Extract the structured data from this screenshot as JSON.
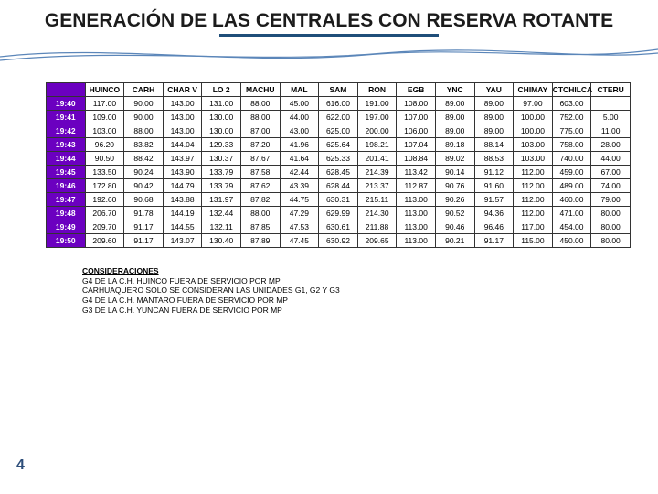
{
  "title_text": "GENERACIÓN DE LAS CENTRALES CON RESERVA ROTANTE",
  "title_fontsize": "21px",
  "title_color": "#1b1b1b",
  "underline_color": "#1f4e79",
  "wave_stroke": "#5b86b9",
  "page_number": "4",
  "pagenum_fontsize": "16px",
  "pagenum_color": "#2d4e7a",
  "table": {
    "header_bg": "#ffffff",
    "time_col_bg": "#6b00c0",
    "time_col_color": "#ffffff",
    "columns": [
      "",
      "HUINCO",
      "CARH",
      "CHAR V",
      "LO 2",
      "MACHU",
      "MAL",
      "SAM",
      "RON",
      "EGB",
      "YNC",
      "YAU",
      "CHIMAY",
      "CTCHILCA",
      "CTERU"
    ],
    "rows": [
      [
        "19:40",
        "117.00",
        "90.00",
        "143.00",
        "131.00",
        "88.00",
        "45.00",
        "616.00",
        "191.00",
        "108.00",
        "89.00",
        "89.00",
        "97.00",
        "603.00",
        ""
      ],
      [
        "19:41",
        "109.00",
        "90.00",
        "143.00",
        "130.00",
        "88.00",
        "44.00",
        "622.00",
        "197.00",
        "107.00",
        "89.00",
        "89.00",
        "100.00",
        "752.00",
        "5.00"
      ],
      [
        "19:42",
        "103.00",
        "88.00",
        "143.00",
        "130.00",
        "87.00",
        "43.00",
        "625.00",
        "200.00",
        "106.00",
        "89.00",
        "89.00",
        "100.00",
        "775.00",
        "11.00"
      ],
      [
        "19:43",
        "96.20",
        "83.82",
        "144.04",
        "129.33",
        "87.20",
        "41.96",
        "625.64",
        "198.21",
        "107.04",
        "89.18",
        "88.14",
        "103.00",
        "758.00",
        "28.00"
      ],
      [
        "19:44",
        "90.50",
        "88.42",
        "143.97",
        "130.37",
        "87.67",
        "41.64",
        "625.33",
        "201.41",
        "108.84",
        "89.02",
        "88.53",
        "103.00",
        "740.00",
        "44.00"
      ],
      [
        "19:45",
        "133.50",
        "90.24",
        "143.90",
        "133.79",
        "87.58",
        "42.44",
        "628.45",
        "214.39",
        "113.42",
        "90.14",
        "91.12",
        "112.00",
        "459.00",
        "67.00"
      ],
      [
        "19:46",
        "172.80",
        "90.42",
        "144.79",
        "133.79",
        "87.62",
        "43.39",
        "628.44",
        "213.37",
        "112.87",
        "90.76",
        "91.60",
        "112.00",
        "489.00",
        "74.00"
      ],
      [
        "19:47",
        "192.60",
        "90.68",
        "143.88",
        "131.97",
        "87.82",
        "44.75",
        "630.31",
        "215.11",
        "113.00",
        "90.26",
        "91.57",
        "112.00",
        "460.00",
        "79.00"
      ],
      [
        "19:48",
        "206.70",
        "91.78",
        "144.19",
        "132.44",
        "88.00",
        "47.29",
        "629.99",
        "214.30",
        "113.00",
        "90.52",
        "94.36",
        "112.00",
        "471.00",
        "80.00"
      ],
      [
        "19:49",
        "209.70",
        "91.17",
        "144.55",
        "132.11",
        "87.85",
        "47.53",
        "630.61",
        "211.88",
        "113.00",
        "90.46",
        "96.46",
        "117.00",
        "454.00",
        "80.00"
      ],
      [
        "19:50",
        "209.60",
        "91.17",
        "143.07",
        "130.40",
        "87.89",
        "47.45",
        "630.92",
        "209.65",
        "113.00",
        "90.21",
        "91.17",
        "115.00",
        "450.00",
        "80.00"
      ]
    ]
  },
  "notes": {
    "heading": "CONSIDERACIONES",
    "lines": [
      "G4 DE LA C.H. HUINCO FUERA DE SERVICIO POR  MP",
      "CARHUAQUERO SOLO SE CONSIDERAN LAS UNIDADES G1, G2 Y G3",
      "G4 DE LA  C.H. MANTARO FUERA DE SERVICIO POR MP",
      "G3 DE LA C.H. YUNCAN FUERA DE SERVICIO POR MP"
    ]
  }
}
